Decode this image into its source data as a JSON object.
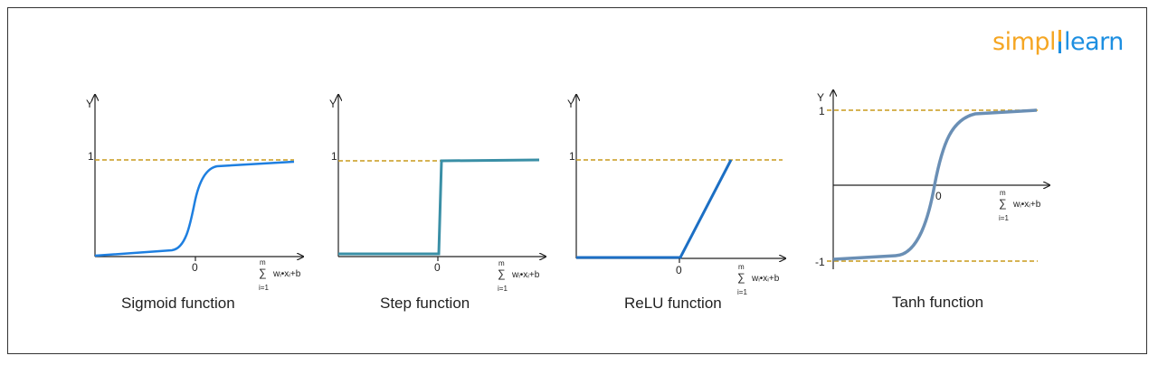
{
  "brand": {
    "part1": "simpl",
    "part2": "learn"
  },
  "charts": [
    {
      "title": "Sigmoid function",
      "y_label": "Y",
      "one_label": "1",
      "origin_label": "0",
      "sum_top": "m",
      "sum_bottom": "i=1",
      "sum_expr": "wᵢ•xᵢ+b"
    },
    {
      "title": "Step function",
      "y_label": "Y",
      "one_label": "1",
      "origin_label": "0",
      "sum_top": "m",
      "sum_bottom": "i=1",
      "sum_expr": "wᵢ•xᵢ+b"
    },
    {
      "title": "ReLU function",
      "y_label": "Y",
      "one_label": "1",
      "origin_label": "0",
      "sum_top": "m",
      "sum_bottom": "i=1",
      "sum_expr": "wᵢ•xᵢ+b"
    },
    {
      "title": "Tanh function",
      "y_label": "Y",
      "one_label": "1",
      "minus_one_label": "-1",
      "origin_label": "0",
      "sum_top": "m",
      "sum_bottom": "i=1",
      "sum_expr": "wᵢ•xᵢ+b"
    }
  ],
  "colors": {
    "sigmoid": "#1e7fe0",
    "step": "#3a8fa6",
    "relu": "#1c6fc4",
    "tanh": "#6a8fb5",
    "threshold": "#c99a1b"
  }
}
